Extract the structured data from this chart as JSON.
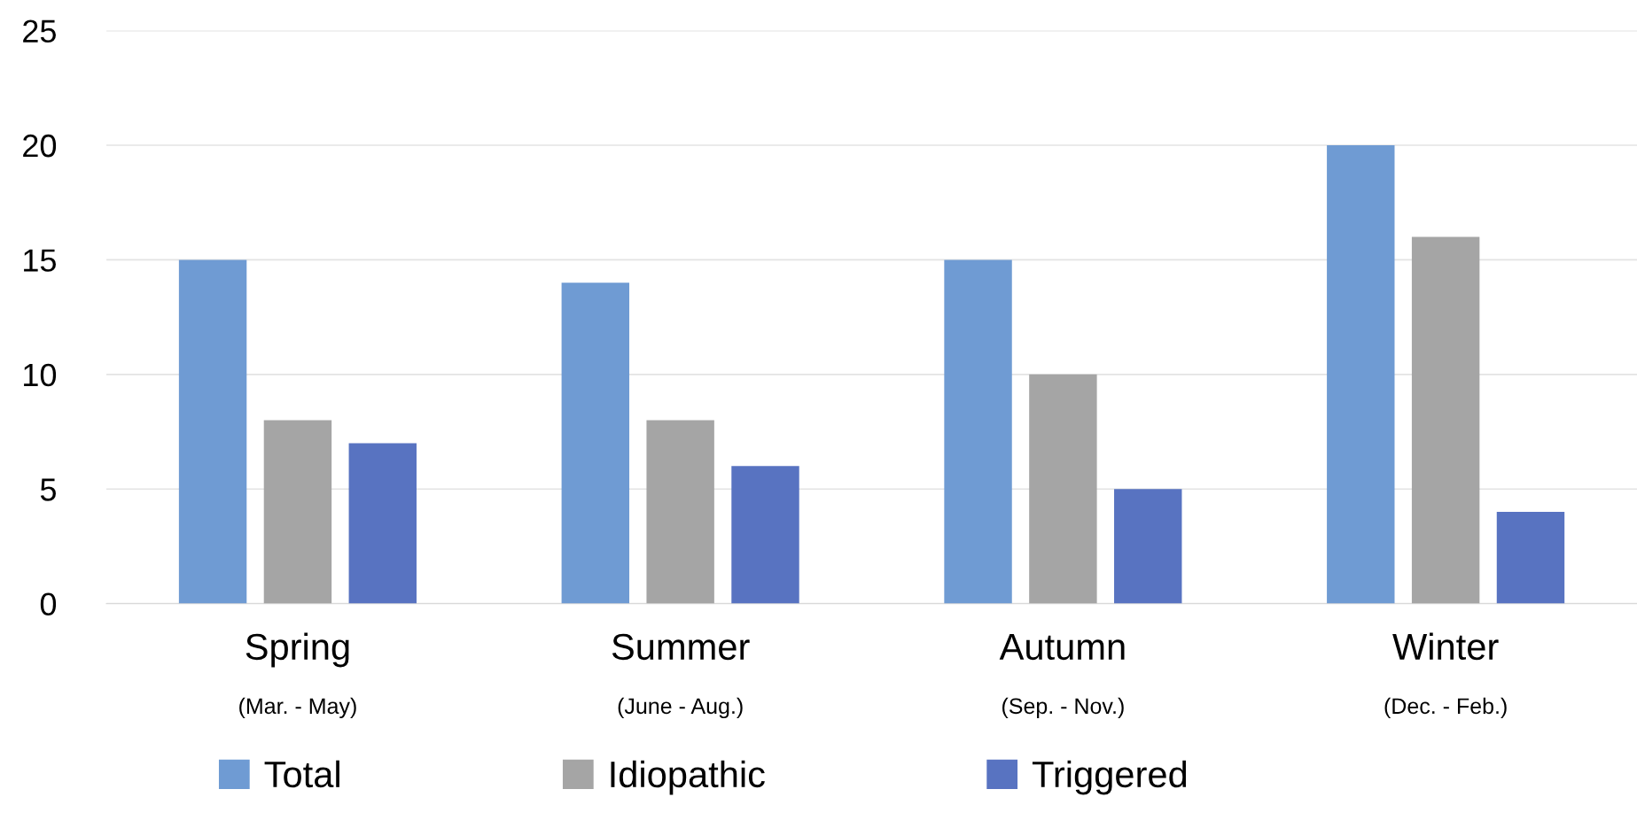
{
  "chart_data": {
    "type": "bar",
    "categories": [
      "Spring\n(Mar. - May)",
      "Summer\n(June - Aug.)",
      "Autumn\n(Sep. - Nov.)",
      "Winter\n(Dec. - Feb.)"
    ],
    "series": [
      {
        "name": "Total",
        "color": "#6f9bd3",
        "values": [
          15,
          14,
          15,
          20
        ]
      },
      {
        "name": "Idiopathic",
        "color": "#a5a5a5",
        "values": [
          8,
          8,
          10,
          16
        ]
      },
      {
        "name": "Triggered",
        "color": "#5873c1",
        "values": [
          7,
          6,
          5,
          4
        ]
      }
    ],
    "ylim": [
      0,
      25
    ],
    "yticks": [
      0,
      5,
      10,
      15,
      20,
      25
    ],
    "grid": "y",
    "legend": "bottom"
  }
}
